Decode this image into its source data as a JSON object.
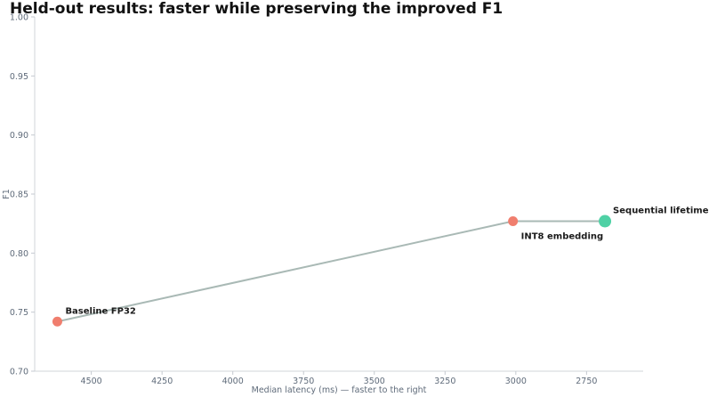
{
  "chart_data": {
    "type": "line",
    "title": "Held-out results: faster while preserving the improved F1",
    "xlabel": "Median latency (ms) — faster to the right",
    "ylabel": "F1",
    "x_axis_reversed": true,
    "xlim": [
      4620,
      2550
    ],
    "ylim": [
      0.7,
      1.0
    ],
    "xticks": [
      "4500",
      "4250",
      "4000",
      "3750",
      "3500",
      "3250",
      "3000",
      "2750"
    ],
    "yticks": [
      "0.70",
      "0.75",
      "0.80",
      "0.85",
      "0.90",
      "0.95",
      "1.00"
    ],
    "grid": false,
    "points": [
      {
        "label": "Baseline FP32",
        "x": 4620,
        "y": 0.742,
        "color": "#f07e6e",
        "label_pos": "above-right"
      },
      {
        "label": "INT8 embedding",
        "x": 3010,
        "y": 0.827,
        "color": "#f07e6e",
        "label_pos": "below-right"
      },
      {
        "label": "Sequential lifetime",
        "x": 2685,
        "y": 0.827,
        "color": "#4fd1a5",
        "highlight": true,
        "label_pos": "above-right"
      }
    ],
    "line_color": "#a9b9b5"
  }
}
